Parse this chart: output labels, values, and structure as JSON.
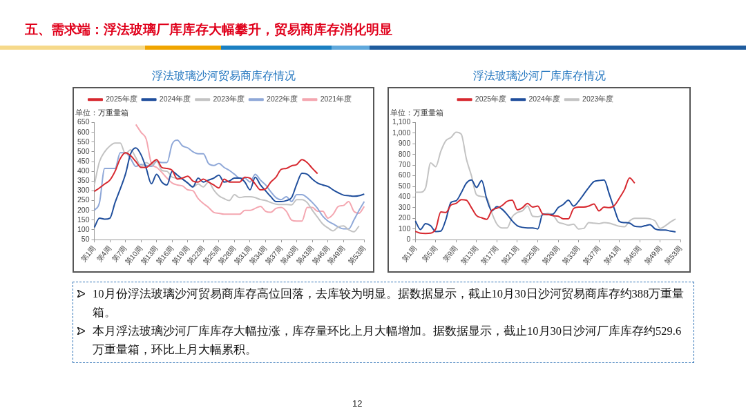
{
  "chart_data": [
    {
      "type": "line",
      "title": "浮法玻璃沙河贸易商库存情况",
      "ylabel": "单位：万重量箱",
      "legend": "top",
      "categories": [
        "第1周",
        null,
        null,
        "第4周",
        null,
        null,
        "第7周",
        null,
        null,
        "第10周",
        null,
        null,
        "第13周",
        null,
        null,
        "第16周",
        null,
        null,
        "第19周",
        null,
        null,
        "第22周",
        null,
        null,
        "第25周",
        null,
        null,
        "第28周",
        null,
        null,
        "第31周",
        null,
        null,
        "第34周",
        null,
        null,
        "第37周",
        null,
        null,
        "第40周",
        null,
        null,
        "第43周",
        null,
        null,
        "第46周",
        null,
        null,
        "第49周",
        null,
        null,
        null,
        "第53周"
      ],
      "ylim": [
        50,
        650
      ],
      "yticks": [
        50,
        100,
        150,
        200,
        250,
        300,
        350,
        400,
        450,
        500,
        550,
        600,
        650
      ],
      "series": [
        {
          "name": "2025年度",
          "color": "#d7282f",
          "values": [
            297,
            315,
            335,
            355,
            400,
            465,
            495,
            480,
            450,
            420,
            420,
            440,
            460,
            420,
            415,
            405,
            360,
            365,
            375,
            350,
            345,
            360,
            345,
            330,
            315,
            360,
            345,
            345,
            345,
            370,
            365,
            335,
            305,
            310,
            345,
            370,
            410,
            415,
            428,
            435,
            460,
            445,
            415,
            388,
            null,
            null,
            null,
            null,
            null,
            null,
            null,
            null,
            null
          ]
        },
        {
          "name": "2024年度",
          "color": "#1f4e9c",
          "values": [
            112,
            160,
            155,
            160,
            240,
            310,
            385,
            490,
            520,
            485,
            415,
            336,
            385,
            345,
            330,
            400,
            380,
            360,
            340,
            320,
            365,
            345,
            355,
            365,
            380,
            345,
            350,
            365,
            365,
            345,
            305,
            370,
            330,
            300,
            270,
            245,
            245,
            250,
            265,
            335,
            390,
            385,
            360,
            340,
            330,
            322,
            305,
            290,
            278,
            275,
            272,
            275,
            283
          ]
        },
        {
          "name": "2023年度",
          "color": "#c3c3c3",
          "values": [
            330,
            450,
            500,
            530,
            545,
            545,
            490,
            510,
            470,
            425,
            445,
            430,
            455,
            405,
            400,
            370,
            365,
            360,
            340,
            320,
            335,
            320,
            345,
            305,
            275,
            260,
            250,
            280,
            265,
            270,
            270,
            265,
            255,
            250,
            240,
            232,
            230,
            230,
            228,
            255,
            255,
            240,
            200,
            165,
            130,
            110,
            95,
            115,
            120,
            100,
            90,
            120,
            null
          ]
        },
        {
          "name": "2022年度",
          "color": "#8fa8d8",
          "values": [
            200,
            240,
            415,
            415,
            415,
            495,
            495,
            465,
            425,
            435,
            430,
            425,
            450,
            445,
            445,
            540,
            560,
            530,
            520,
            500,
            490,
            490,
            440,
            430,
            440,
            420,
            405,
            385,
            365,
            365,
            345,
            385,
            355,
            330,
            295,
            265,
            255,
            270,
            245,
            280,
            280,
            265,
            240,
            210,
            170,
            145,
            130,
            115,
            105,
            105,
            150,
            200,
            245
          ]
        },
        {
          "name": "2021年度",
          "color": "#f4a6b0",
          "values": [
            null,
            null,
            null,
            null,
            null,
            null,
            null,
            null,
            640,
            600,
            565,
            440,
            420,
            395,
            365,
            340,
            330,
            325,
            305,
            300,
            260,
            235,
            215,
            190,
            185,
            180,
            180,
            180,
            180,
            200,
            200,
            210,
            220,
            195,
            190,
            210,
            215,
            195,
            150,
            145,
            145,
            215,
            215,
            195,
            195,
            160,
            180,
            220,
            225,
            245,
            195,
            185,
            220
          ]
        }
      ]
    },
    {
      "type": "line",
      "title": "浮法玻璃沙河厂库库存情况",
      "ylabel": "单位：万重量箱",
      "legend": "top",
      "categories": [
        "第1周",
        null,
        null,
        null,
        "第5周",
        null,
        null,
        null,
        "第9周",
        null,
        null,
        null,
        "第13周",
        null,
        null,
        null,
        "第17周",
        null,
        null,
        null,
        "第21周",
        null,
        null,
        null,
        "第25周",
        null,
        null,
        null,
        "第29周",
        null,
        null,
        null,
        "第33周",
        null,
        null,
        null,
        "第37周",
        null,
        null,
        null,
        "第41周",
        null,
        null,
        null,
        "第45周",
        null,
        null,
        null,
        "第49周",
        null,
        null,
        null,
        "第53周"
      ],
      "ylim": [
        0,
        1100
      ],
      "yticks": [
        0,
        100,
        200,
        300,
        400,
        500,
        600,
        700,
        800,
        900,
        {
          "value": 1000,
          "label": "1,000"
        },
        {
          "value": 1100,
          "label": "1,100"
        }
      ],
      "series": [
        {
          "name": "2025年度",
          "color": "#d7282f",
          "values": [
            78,
            60,
            57,
            60,
            100,
            260,
            255,
            325,
            340,
            375,
            370,
            300,
            225,
            205,
            190,
            275,
            295,
            320,
            360,
            370,
            280,
            300,
            340,
            305,
            315,
            240,
            235,
            225,
            220,
            195,
            195,
            290,
            305,
            305,
            315,
            335,
            270,
            305,
            300,
            320,
            390,
            470,
            580,
            530,
            null,
            null,
            null,
            null,
            null,
            null,
            null,
            null,
            null
          ]
        },
        {
          "name": "2024年度",
          "color": "#1f4e9c",
          "values": [
            175,
            95,
            150,
            130,
            75,
            80,
            190,
            350,
            365,
            440,
            530,
            560,
            490,
            555,
            380,
            270,
            310,
            285,
            235,
            175,
            130,
            115,
            110,
            110,
            100,
            240,
            235,
            240,
            300,
            330,
            370,
            315,
            360,
            425,
            490,
            545,
            555,
            560,
            430,
            290,
            170,
            160,
            155,
            125,
            120,
            130,
            140,
            100,
            90,
            90,
            80,
            72,
            null
          ]
        },
        {
          "name": "2023年度",
          "color": "#c3c3c3",
          "values": [
            445,
            445,
            485,
            720,
            685,
            830,
            930,
            960,
            1010,
            990,
            760,
            600,
            420,
            405,
            390,
            250,
            145,
            110,
            110,
            215,
            255,
            270,
            315,
            220,
            215,
            230,
            245,
            230,
            165,
            150,
            135,
            145,
            100,
            105,
            160,
            155,
            150,
            160,
            155,
            140,
            125,
            120,
            175,
            200,
            200,
            200,
            195,
            175,
            105,
            130,
            165,
            195,
            null
          ]
        }
      ]
    },
    {
      "type": "other",
      "title": "五、需求端：浮法玻璃厂库库存大幅攀升，贸易商库存消化明显",
      "annotations": [
        "10月份浮法玻璃沙河贸易商库存高位回落，去库较为明显。据数据显示，截止10月30日沙河贸易商库存约388万重量箱。",
        "本月浮法玻璃沙河厂库库存大幅拉涨，库存量环比上月大幅增加。据数据显示，截止10月30日沙河厂库库存约529.6万重量箱，环比上月大幅累积。",
        "12"
      ]
    }
  ]
}
